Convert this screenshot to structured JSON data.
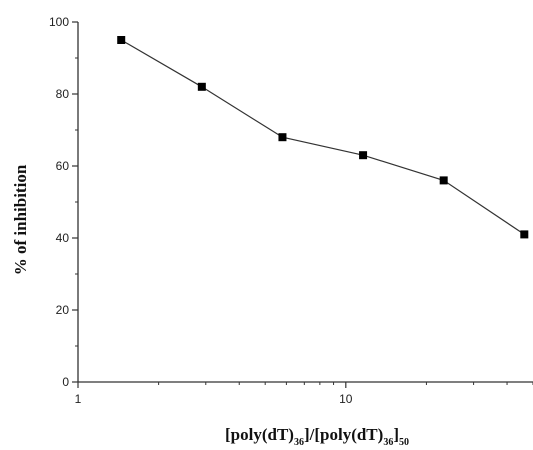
{
  "chart_data": {
    "type": "scatter",
    "title": "",
    "ylabel": "% of inhibition",
    "xlabel_parts": {
      "a": "[poly(dT)",
      "a_sub": "36",
      "b": "]/[poly(dT)",
      "b_sub": "36",
      "c": "]",
      "c_sub": "50"
    },
    "x_scale": "log",
    "xlim": [
      1,
      50
    ],
    "ylim": [
      0,
      100
    ],
    "x_ticks": [
      1,
      10
    ],
    "x_tick_labels": [
      "1",
      "10"
    ],
    "y_ticks": [
      0,
      20,
      40,
      60,
      80,
      100
    ],
    "y_tick_labels": [
      "0",
      "20",
      "40",
      "60",
      "80",
      "100"
    ],
    "grid": false,
    "series": [
      {
        "x": [
          1.45,
          2.9,
          5.8,
          11.6,
          23.2,
          46.4
        ],
        "y": [
          95,
          82,
          68,
          63,
          56,
          41
        ]
      }
    ]
  }
}
